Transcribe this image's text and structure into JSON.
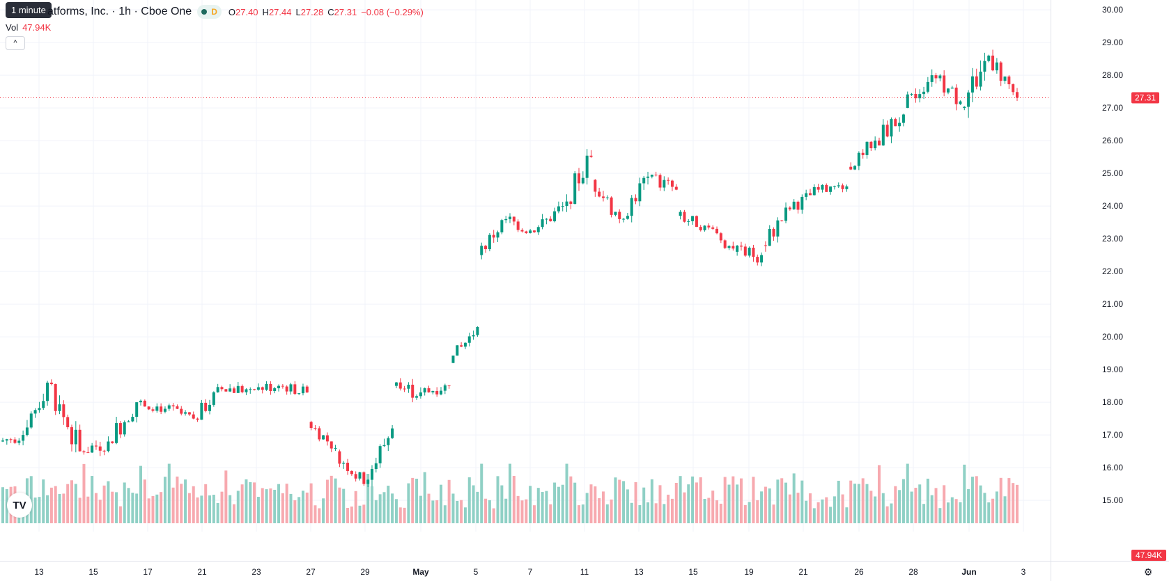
{
  "legend": {
    "title": "atforms, Inc. · 1h · Cboe One",
    "status_letter": "D",
    "o_label": "O",
    "o_value": "27.40",
    "h_label": "H",
    "h_value": "27.44",
    "l_label": "L",
    "l_value": "27.28",
    "c_label": "C",
    "c_value": "27.31",
    "change": "−0.08 (−0.29%)"
  },
  "tooltip": "1 minute",
  "volume": {
    "label": "Vol",
    "value": "47.94K"
  },
  "logo_text": "TV",
  "colors": {
    "up": "#089981",
    "down": "#f23645",
    "up_vol": "#8fd0c5",
    "down_vol": "#f7a9af",
    "grid": "#f0f3fa",
    "last_price_line": "#f23645"
  },
  "chart_data": {
    "type": "candlestick",
    "x_ticks": [
      "13",
      "15",
      "17",
      "21",
      "23",
      "27",
      "29",
      "May",
      "5",
      "7",
      "11",
      "13",
      "15",
      "19",
      "21",
      "26",
      "28",
      "Jun",
      "3"
    ],
    "y_ticks": [
      "30.00",
      "29.00",
      "28.00",
      "27.00",
      "26.00",
      "25.00",
      "24.00",
      "23.00",
      "22.00",
      "21.00",
      "20.00",
      "19.00",
      "18.00",
      "17.00",
      "16.00",
      "15.00"
    ],
    "ylim": [
      14.3,
      30.3
    ],
    "last_price": 27.31,
    "last_price_label": "27.31",
    "volume_label": "47.94K",
    "segments": [
      {
        "date": "13",
        "open": 16.8,
        "close": 17.0,
        "low": 16.0,
        "high": 17.2,
        "steps": 6
      },
      {
        "date": "14",
        "open": 17.0,
        "close": 18.6,
        "low": 16.9,
        "high": 18.9,
        "steps": 6
      },
      {
        "date": "15",
        "open": 18.6,
        "close": 16.5,
        "low": 16.3,
        "high": 18.7,
        "steps": 8
      },
      {
        "date": "16",
        "open": 16.5,
        "close": 16.8,
        "low": 16.2,
        "high": 17.7,
        "steps": 7
      },
      {
        "date": "17",
        "open": 16.8,
        "close": 18.0,
        "low": 16.6,
        "high": 18.5,
        "steps": 7
      },
      {
        "date": "18",
        "open": 18.0,
        "close": 17.8,
        "low": 17.6,
        "high": 18.5,
        "steps": 7
      },
      {
        "date": "21",
        "open": 17.8,
        "close": 17.5,
        "low": 17.3,
        "high": 18.4,
        "steps": 7
      },
      {
        "date": "22",
        "open": 17.5,
        "close": 18.4,
        "low": 17.4,
        "high": 18.8,
        "steps": 7
      },
      {
        "date": "23",
        "open": 18.4,
        "close": 18.4,
        "low": 17.8,
        "high": 19.0,
        "steps": 7
      },
      {
        "date": "24",
        "open": 18.4,
        "close": 18.5,
        "low": 18.1,
        "high": 19.1,
        "steps": 7
      },
      {
        "date": "27",
        "open": 18.5,
        "close": 18.3,
        "low": 18.0,
        "high": 18.9,
        "steps": 7
      },
      {
        "date": "28",
        "open": 17.4,
        "close": 16.6,
        "low": 16.4,
        "high": 17.5,
        "steps": 7
      },
      {
        "date": "29",
        "open": 16.5,
        "close": 15.5,
        "low": 15.3,
        "high": 16.7,
        "steps": 7
      },
      {
        "date": "30",
        "open": 15.5,
        "close": 17.2,
        "low": 15.4,
        "high": 17.3,
        "steps": 7
      },
      {
        "date": "May",
        "open": 18.5,
        "close": 18.3,
        "low": 18.0,
        "high": 19.5,
        "steps": 7
      },
      {
        "date": "2",
        "open": 18.3,
        "close": 18.5,
        "low": 18.1,
        "high": 19.1,
        "steps": 7
      },
      {
        "date": "5",
        "open": 19.2,
        "close": 20.3,
        "low": 19.1,
        "high": 20.4,
        "steps": 7
      },
      {
        "date": "6",
        "open": 22.5,
        "close": 23.6,
        "low": 22.3,
        "high": 23.7,
        "steps": 7
      },
      {
        "date": "7",
        "open": 23.6,
        "close": 23.2,
        "low": 22.9,
        "high": 24.1,
        "steps": 7
      },
      {
        "date": "8",
        "open": 23.2,
        "close": 24.0,
        "low": 23.0,
        "high": 24.4,
        "steps": 7
      },
      {
        "date": "11",
        "open": 24.0,
        "close": 25.5,
        "low": 23.8,
        "high": 25.9,
        "steps": 7
      },
      {
        "date": "12",
        "open": 24.8,
        "close": 23.6,
        "low": 23.4,
        "high": 25.0,
        "steps": 7
      },
      {
        "date": "13",
        "open": 23.6,
        "close": 24.9,
        "low": 23.5,
        "high": 25.3,
        "steps": 7
      },
      {
        "date": "14",
        "open": 24.9,
        "close": 24.5,
        "low": 23.9,
        "high": 25.2,
        "steps": 7
      },
      {
        "date": "15",
        "open": 23.7,
        "close": 23.4,
        "low": 23.0,
        "high": 24.1,
        "steps": 7
      },
      {
        "date": "16",
        "open": 23.4,
        "close": 22.7,
        "low": 22.4,
        "high": 23.5,
        "steps": 7
      },
      {
        "date": "19",
        "open": 22.6,
        "close": 22.5,
        "low": 21.8,
        "high": 23.2,
        "steps": 7
      },
      {
        "date": "20",
        "open": 22.8,
        "close": 23.9,
        "low": 22.6,
        "high": 24.2,
        "steps": 7
      },
      {
        "date": "21",
        "open": 23.9,
        "close": 24.5,
        "low": 23.6,
        "high": 24.7,
        "steps": 7
      },
      {
        "date": "22",
        "open": 24.5,
        "close": 24.6,
        "low": 24.2,
        "high": 25.0,
        "steps": 7
      },
      {
        "date": "26",
        "open": 25.2,
        "close": 26.0,
        "low": 25.1,
        "high": 26.3,
        "steps": 7
      },
      {
        "date": "27",
        "open": 26.0,
        "close": 26.8,
        "low": 25.6,
        "high": 27.4,
        "steps": 7
      },
      {
        "date": "28",
        "open": 27.0,
        "close": 28.0,
        "low": 26.9,
        "high": 28.5,
        "steps": 7
      },
      {
        "date": "29",
        "open": 28.0,
        "close": 27.2,
        "low": 26.6,
        "high": 28.2,
        "steps": 7
      },
      {
        "date": "Jun",
        "open": 27.0,
        "close": 28.6,
        "low": 25.9,
        "high": 28.9,
        "steps": 7
      },
      {
        "date": "2",
        "open": 28.6,
        "close": 27.31,
        "low": 27.2,
        "high": 28.9,
        "steps": 7
      }
    ]
  }
}
